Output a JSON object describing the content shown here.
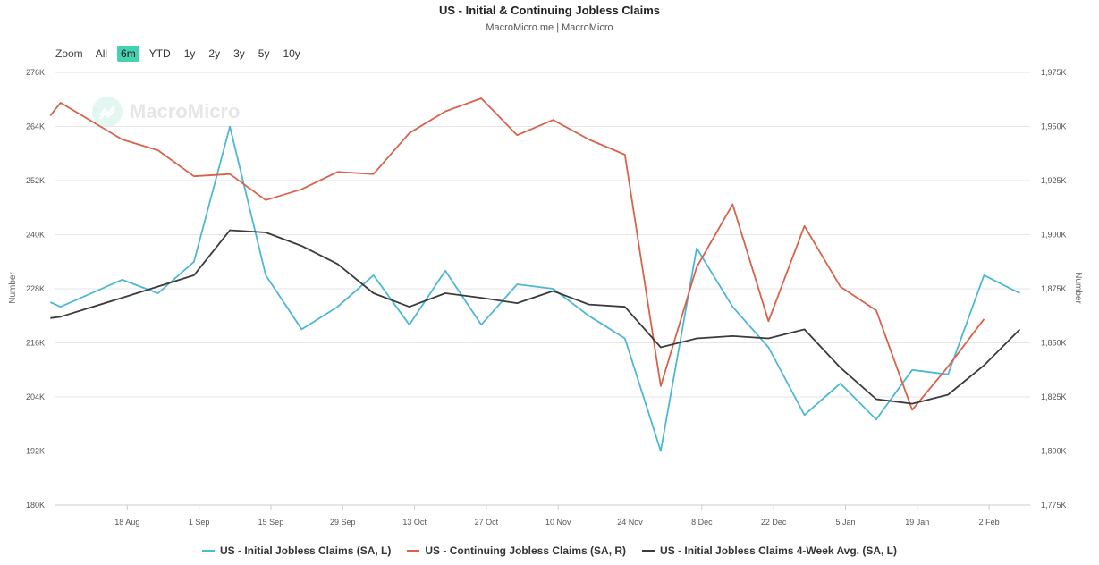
{
  "chart_data": {
    "type": "line",
    "title": "US - Initial & Continuing Jobless Claims",
    "subtitle": "MacroMicro.me | MacroMicro",
    "watermark": "MacroMicro",
    "zoom": {
      "label": "Zoom",
      "options": [
        "All",
        "6m",
        "YTD",
        "1y",
        "2y",
        "3y",
        "5y",
        "10y"
      ],
      "selected": "6m"
    },
    "x_range": [
      "2024-08-04",
      "2025-02-10"
    ],
    "x_ticks": [
      {
        "date": "2024-08-18",
        "label": "18 Aug"
      },
      {
        "date": "2024-09-01",
        "label": "1 Sep"
      },
      {
        "date": "2024-09-15",
        "label": "15 Sep"
      },
      {
        "date": "2024-09-29",
        "label": "29 Sep"
      },
      {
        "date": "2024-10-13",
        "label": "13 Oct"
      },
      {
        "date": "2024-10-27",
        "label": "27 Oct"
      },
      {
        "date": "2024-11-10",
        "label": "10 Nov"
      },
      {
        "date": "2024-11-24",
        "label": "24 Nov"
      },
      {
        "date": "2024-12-08",
        "label": "8 Dec"
      },
      {
        "date": "2024-12-22",
        "label": "22 Dec"
      },
      {
        "date": "2025-01-05",
        "label": "5 Jan"
      },
      {
        "date": "2025-01-19",
        "label": "19 Jan"
      },
      {
        "date": "2025-02-02",
        "label": "2 Feb"
      }
    ],
    "y_left": {
      "label": "Number",
      "range": [
        180000,
        276000
      ],
      "ticks": [
        180000,
        192000,
        204000,
        216000,
        228000,
        240000,
        252000,
        264000,
        276000
      ],
      "tick_labels": [
        "180K",
        "192K",
        "204K",
        "216K",
        "228K",
        "240K",
        "252K",
        "264K",
        "276K"
      ]
    },
    "y_right": {
      "label": "Number",
      "range": [
        1775000,
        1975000
      ],
      "ticks": [
        1775000,
        1800000,
        1825000,
        1850000,
        1875000,
        1900000,
        1925000,
        1950000,
        1975000
      ],
      "tick_labels": [
        "1,775K",
        "1,800K",
        "1,825K",
        "1,850K",
        "1,875K",
        "1,900K",
        "1,925K",
        "1,950K",
        "1,975K"
      ]
    },
    "grid": true,
    "legend_position": "bottom-center",
    "series": [
      {
        "name": "US - Initial Jobless Claims (SA, L)",
        "axis": "left",
        "color": "#4db8d4",
        "x": [
          "2024-08-03",
          "2024-08-05",
          "2024-08-17",
          "2024-08-24",
          "2024-08-31",
          "2024-09-07",
          "2024-09-14",
          "2024-09-21",
          "2024-09-28",
          "2024-10-05",
          "2024-10-12",
          "2024-10-19",
          "2024-10-26",
          "2024-11-02",
          "2024-11-09",
          "2024-11-16",
          "2024-11-23",
          "2024-11-30",
          "2024-12-07",
          "2024-12-14",
          "2024-12-21",
          "2024-12-28",
          "2025-01-04",
          "2025-01-11",
          "2025-01-18",
          "2025-01-25",
          "2025-02-01",
          "2025-02-08"
        ],
        "values": [
          225000,
          224000,
          230000,
          227000,
          234000,
          264000,
          231000,
          219000,
          224000,
          231000,
          220000,
          232000,
          220000,
          229000,
          228000,
          222000,
          217000,
          192000,
          237000,
          224000,
          215000,
          200000,
          207000,
          199000,
          210000,
          209000,
          231000,
          227000
        ]
      },
      {
        "name": "US - Continuing Jobless Claims (SA, R)",
        "axis": "right",
        "color": "#d9624a",
        "x": [
          "2024-08-03",
          "2024-08-05",
          "2024-08-17",
          "2024-08-24",
          "2024-08-31",
          "2024-09-07",
          "2024-09-14",
          "2024-09-21",
          "2024-09-28",
          "2024-10-05",
          "2024-10-12",
          "2024-10-19",
          "2024-10-26",
          "2024-11-02",
          "2024-11-09",
          "2024-11-16",
          "2024-11-23",
          "2024-11-30",
          "2024-12-07",
          "2024-12-14",
          "2024-12-21",
          "2024-12-28",
          "2025-01-04",
          "2025-01-11",
          "2025-01-18",
          "2025-01-25",
          "2025-02-01"
        ],
        "values": [
          1955000,
          1961000,
          1944000,
          1939000,
          1927000,
          1928000,
          1916000,
          1921000,
          1929000,
          1928000,
          1947000,
          1957000,
          1963000,
          1946000,
          1953000,
          1944000,
          1937000,
          1830000,
          1885000,
          1914000,
          1860000,
          1904000,
          1876000,
          1865000,
          1819000,
          1839000,
          1861000
        ]
      },
      {
        "name": "US - Initial Jobless Claims 4-Week Avg. (SA, L)",
        "axis": "left",
        "color": "#3b3b3b",
        "x": [
          "2024-08-03",
          "2024-08-05",
          "2024-08-17",
          "2024-08-24",
          "2024-08-31",
          "2024-09-07",
          "2024-09-14",
          "2024-09-21",
          "2024-09-28",
          "2024-10-05",
          "2024-10-12",
          "2024-10-19",
          "2024-10-26",
          "2024-11-02",
          "2024-11-09",
          "2024-11-16",
          "2024-11-23",
          "2024-11-30",
          "2024-12-07",
          "2024-12-14",
          "2024-12-21",
          "2024-12-28",
          "2025-01-04",
          "2025-01-11",
          "2025-01-18",
          "2025-01-25",
          "2025-02-01",
          "2025-02-08"
        ],
        "values": [
          221500,
          221800,
          226000,
          228500,
          231000,
          241000,
          240500,
          237500,
          233500,
          227000,
          224000,
          227000,
          226000,
          224800,
          227500,
          224500,
          224000,
          215000,
          217000,
          217500,
          217000,
          219000,
          210500,
          203500,
          202500,
          204500,
          211000,
          219000
        ]
      }
    ]
  }
}
